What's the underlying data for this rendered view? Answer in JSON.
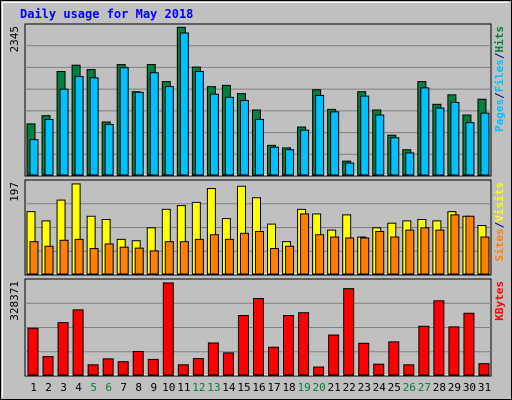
{
  "chart_data": [
    {
      "type": "bar",
      "title": "Daily usage for May 2018",
      "categories": [
        "1",
        "2",
        "3",
        "4",
        "5",
        "6",
        "7",
        "8",
        "9",
        "10",
        "11",
        "12",
        "13",
        "14",
        "15",
        "16",
        "17",
        "18",
        "19",
        "20",
        "21",
        "22",
        "23",
        "24",
        "25",
        "26",
        "27",
        "28",
        "29",
        "30",
        "31"
      ],
      "weekend_days": [
        "5",
        "6",
        "12",
        "13",
        "19",
        "20",
        "26",
        "27"
      ],
      "ymax_label": "2345",
      "ylim": [
        0,
        2345
      ],
      "side_label": {
        "parts": [
          "Pages",
          "/",
          "Files",
          "/",
          "Hits"
        ]
      },
      "series": [
        {
          "name": "Hits",
          "color": "#008040",
          "values": [
            810,
            940,
            1640,
            1740,
            1670,
            840,
            1750,
            1320,
            1750,
            1480,
            2340,
            1710,
            1400,
            1420,
            1290,
            1030,
            470,
            430,
            760,
            1350,
            1040,
            220,
            1320,
            1030,
            630,
            400,
            1480,
            1120,
            1270,
            950,
            1200
          ]
        },
        {
          "name": "Files",
          "color": "#00c0ff",
          "values": [
            560,
            880,
            1360,
            1560,
            1540,
            800,
            1700,
            1310,
            1620,
            1400,
            2250,
            1640,
            1280,
            1230,
            1180,
            880,
            440,
            400,
            710,
            1260,
            1000,
            190,
            1250,
            950,
            590,
            350,
            1380,
            1060,
            1150,
            830,
            980
          ]
        },
        {
          "name": "Pages",
          "color": "#00c0ff",
          "values": [
            0,
            0,
            0,
            0,
            0,
            0,
            0,
            0,
            0,
            0,
            0,
            0,
            0,
            0,
            0,
            0,
            0,
            0,
            0,
            0,
            0,
            0,
            0,
            0,
            0,
            0,
            0,
            0,
            0,
            0,
            0
          ]
        }
      ]
    },
    {
      "type": "bar",
      "ymax_label": "197",
      "ylim": [
        0,
        197
      ],
      "side_label": {
        "parts": [
          "Sites",
          "/",
          "Visits"
        ]
      },
      "series": [
        {
          "name": "Visits",
          "color": "#ffff00",
          "values": [
            135,
            115,
            160,
            195,
            125,
            118,
            75,
            72,
            100,
            140,
            148,
            155,
            185,
            120,
            190,
            165,
            108,
            70,
            140,
            130,
            95,
            128,
            80,
            100,
            110,
            115,
            118,
            115,
            135,
            125,
            105
          ]
        },
        {
          "name": "Sites",
          "color": "#ff8000",
          "values": [
            70,
            60,
            73,
            75,
            55,
            65,
            58,
            56,
            50,
            70,
            70,
            75,
            85,
            75,
            88,
            92,
            55,
            60,
            130,
            85,
            80,
            78,
            78,
            92,
            80,
            95,
            100,
            95,
            128,
            125,
            80
          ]
        }
      ]
    },
    {
      "type": "bar",
      "ymax_label": "328371",
      "ylim": [
        0,
        328371
      ],
      "side_label": {
        "parts": [
          "KBytes"
        ]
      },
      "series": [
        {
          "name": "KBytes",
          "color": "#ff0000",
          "values": [
            165000,
            65000,
            185000,
            230000,
            36000,
            57000,
            47000,
            83000,
            55000,
            325000,
            36000,
            58000,
            113000,
            78000,
            210000,
            270000,
            98000,
            210000,
            220000,
            28000,
            141000,
            305000,
            112000,
            38000,
            117000,
            36000,
            172000,
            262000,
            170000,
            218000,
            40000
          ]
        }
      ]
    }
  ]
}
